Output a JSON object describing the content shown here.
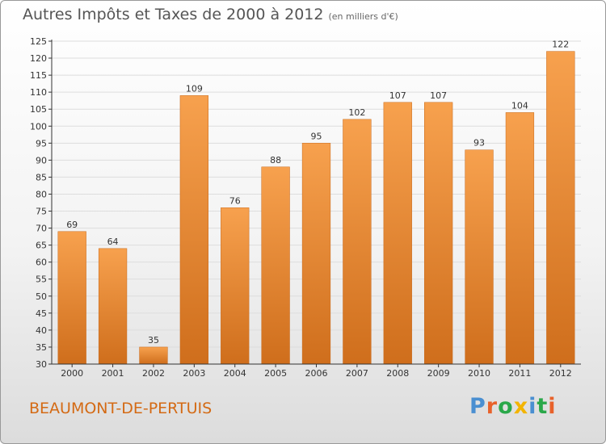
{
  "chart_data": {
    "type": "bar",
    "title": "Autres Impôts et Taxes de 2000 à 2012",
    "subtitle": "(en milliers d'€)",
    "categories": [
      "2000",
      "2001",
      "2002",
      "2003",
      "2004",
      "2005",
      "2006",
      "2007",
      "2008",
      "2009",
      "2010",
      "2011",
      "2012"
    ],
    "values": [
      69,
      64,
      35,
      109,
      76,
      88,
      95,
      102,
      107,
      107,
      93,
      104,
      122
    ],
    "ylim": [
      30,
      125
    ],
    "yticks": [
      30,
      35,
      40,
      45,
      50,
      55,
      60,
      65,
      70,
      75,
      80,
      85,
      90,
      95,
      100,
      105,
      110,
      115,
      120,
      125
    ],
    "grid": true,
    "xlabel": "",
    "ylabel": "",
    "colors": {
      "bar_light": "#f7a14e",
      "bar_dark": "#cf6e1c",
      "axis": "#333333",
      "grid": "#dddddd",
      "label": "#333333"
    }
  },
  "footer": {
    "commune": "BEAUMONT-DE-PERTUIS",
    "brand": {
      "text": "Proxiti",
      "colors": [
        "#4a8fd1",
        "#e8622b",
        "#2aa84a",
        "#f3b400",
        "#4a8fd1",
        "#2aa84a",
        "#e8622b"
      ]
    }
  }
}
